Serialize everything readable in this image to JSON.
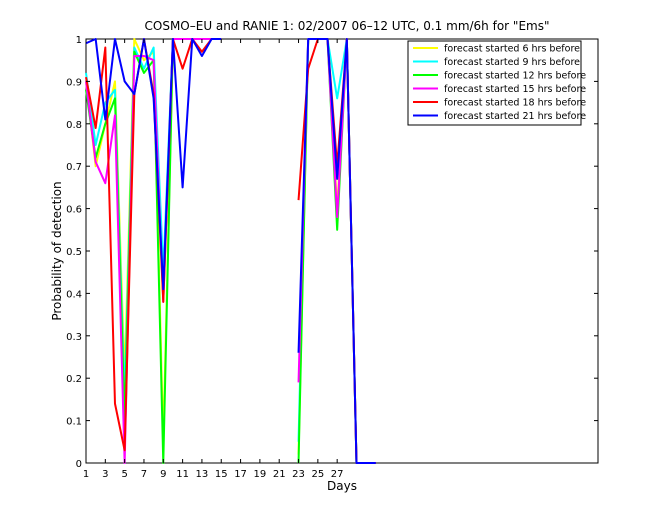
{
  "chart_data": {
    "type": "line",
    "title": "COSMO–EU and RANIE 1: 02/2007 06–12 UTC, 0.1 mm/6h for \"Ems\"",
    "xlabel": "Days",
    "ylabel": "Probability of detection",
    "xlim": [
      1,
      29
    ],
    "ylim": [
      0,
      1
    ],
    "x_view_max": 54,
    "x_ticks": [
      1,
      3,
      5,
      7,
      9,
      11,
      13,
      15,
      17,
      19,
      21,
      23,
      25,
      27
    ],
    "y_ticks": [
      0,
      0.1,
      0.2,
      0.3,
      0.4,
      0.5,
      0.6,
      0.7,
      0.8,
      0.9,
      1
    ],
    "y_tick_labels": [
      "0",
      "0.1",
      "0.2",
      "0.3",
      "0.4",
      "0.5",
      "0.6",
      "0.7",
      "0.8",
      "0.9",
      "1"
    ],
    "grid": false,
    "legend_position": "top-right",
    "x": [
      1,
      2,
      3,
      4,
      5,
      6,
      7,
      8,
      9,
      10,
      11,
      12,
      13,
      14,
      15,
      16,
      17,
      18,
      19,
      20,
      21,
      22,
      23,
      24,
      25,
      26,
      27,
      28,
      29,
      30,
      31
    ],
    "series": [
      {
        "name": "forecast started 6 hrs before",
        "color": "#ffff00",
        "values": [
          0.9,
          0.7,
          0.8,
          0.9,
          0.2,
          1.0,
          0.95,
          0.97,
          0.05,
          1.0,
          1.0,
          1.0,
          1.0,
          1.0,
          1.0,
          null,
          null,
          null,
          null,
          null,
          null,
          null,
          0.02,
          1.0,
          1.0,
          1.0,
          0.6,
          1.0,
          0.0,
          0.0,
          0.0
        ]
      },
      {
        "name": "forecast started 9 hrs before",
        "color": "#00ffff",
        "values": [
          0.92,
          0.75,
          0.85,
          0.88,
          0.15,
          0.98,
          0.93,
          0.98,
          0.45,
          1.0,
          1.0,
          1.0,
          1.0,
          1.0,
          1.0,
          null,
          null,
          null,
          null,
          null,
          null,
          null,
          0.05,
          1.0,
          1.0,
          1.0,
          0.86,
          1.0,
          0.0,
          0.0,
          0.0
        ]
      },
      {
        "name": "forecast started 12 hrs before",
        "color": "#00ff00",
        "values": [
          0.88,
          0.72,
          0.8,
          0.86,
          0.1,
          0.97,
          0.92,
          0.95,
          0.0,
          1.0,
          1.0,
          1.0,
          1.0,
          1.0,
          1.0,
          null,
          null,
          null,
          null,
          null,
          null,
          null,
          0.0,
          1.0,
          1.0,
          1.0,
          0.55,
          1.0,
          0.0,
          0.0,
          0.0
        ]
      },
      {
        "name": "forecast started 15 hrs before",
        "color": "#ff00ff",
        "values": [
          0.9,
          0.71,
          0.66,
          0.82,
          0.0,
          0.96,
          0.96,
          0.95,
          0.38,
          1.0,
          1.0,
          1.0,
          1.0,
          1.0,
          1.0,
          null,
          null,
          null,
          null,
          null,
          null,
          null,
          0.19,
          1.0,
          1.0,
          1.0,
          0.58,
          1.0,
          0.0,
          0.0,
          0.0
        ]
      },
      {
        "name": "forecast started 18 hrs before",
        "color": "#ff0000",
        "values": [
          0.91,
          0.79,
          0.98,
          0.14,
          0.03,
          0.87,
          1.0,
          0.87,
          0.38,
          1.0,
          0.93,
          1.0,
          0.97,
          1.0,
          1.0,
          null,
          null,
          null,
          null,
          null,
          null,
          null,
          0.62,
          0.93,
          1.0,
          1.0,
          0.7,
          1.0,
          0.0,
          0.0,
          0.0
        ]
      },
      {
        "name": "forecast started 21 hrs before",
        "color": "#0000ff",
        "values": [
          0.99,
          1.0,
          0.81,
          1.0,
          0.9,
          0.87,
          1.0,
          0.86,
          0.41,
          1.0,
          0.65,
          1.0,
          0.96,
          1.0,
          1.0,
          null,
          null,
          null,
          null,
          null,
          null,
          null,
          0.26,
          1.0,
          1.0,
          1.0,
          0.67,
          1.0,
          0.0,
          0.0,
          0.0
        ]
      }
    ]
  }
}
